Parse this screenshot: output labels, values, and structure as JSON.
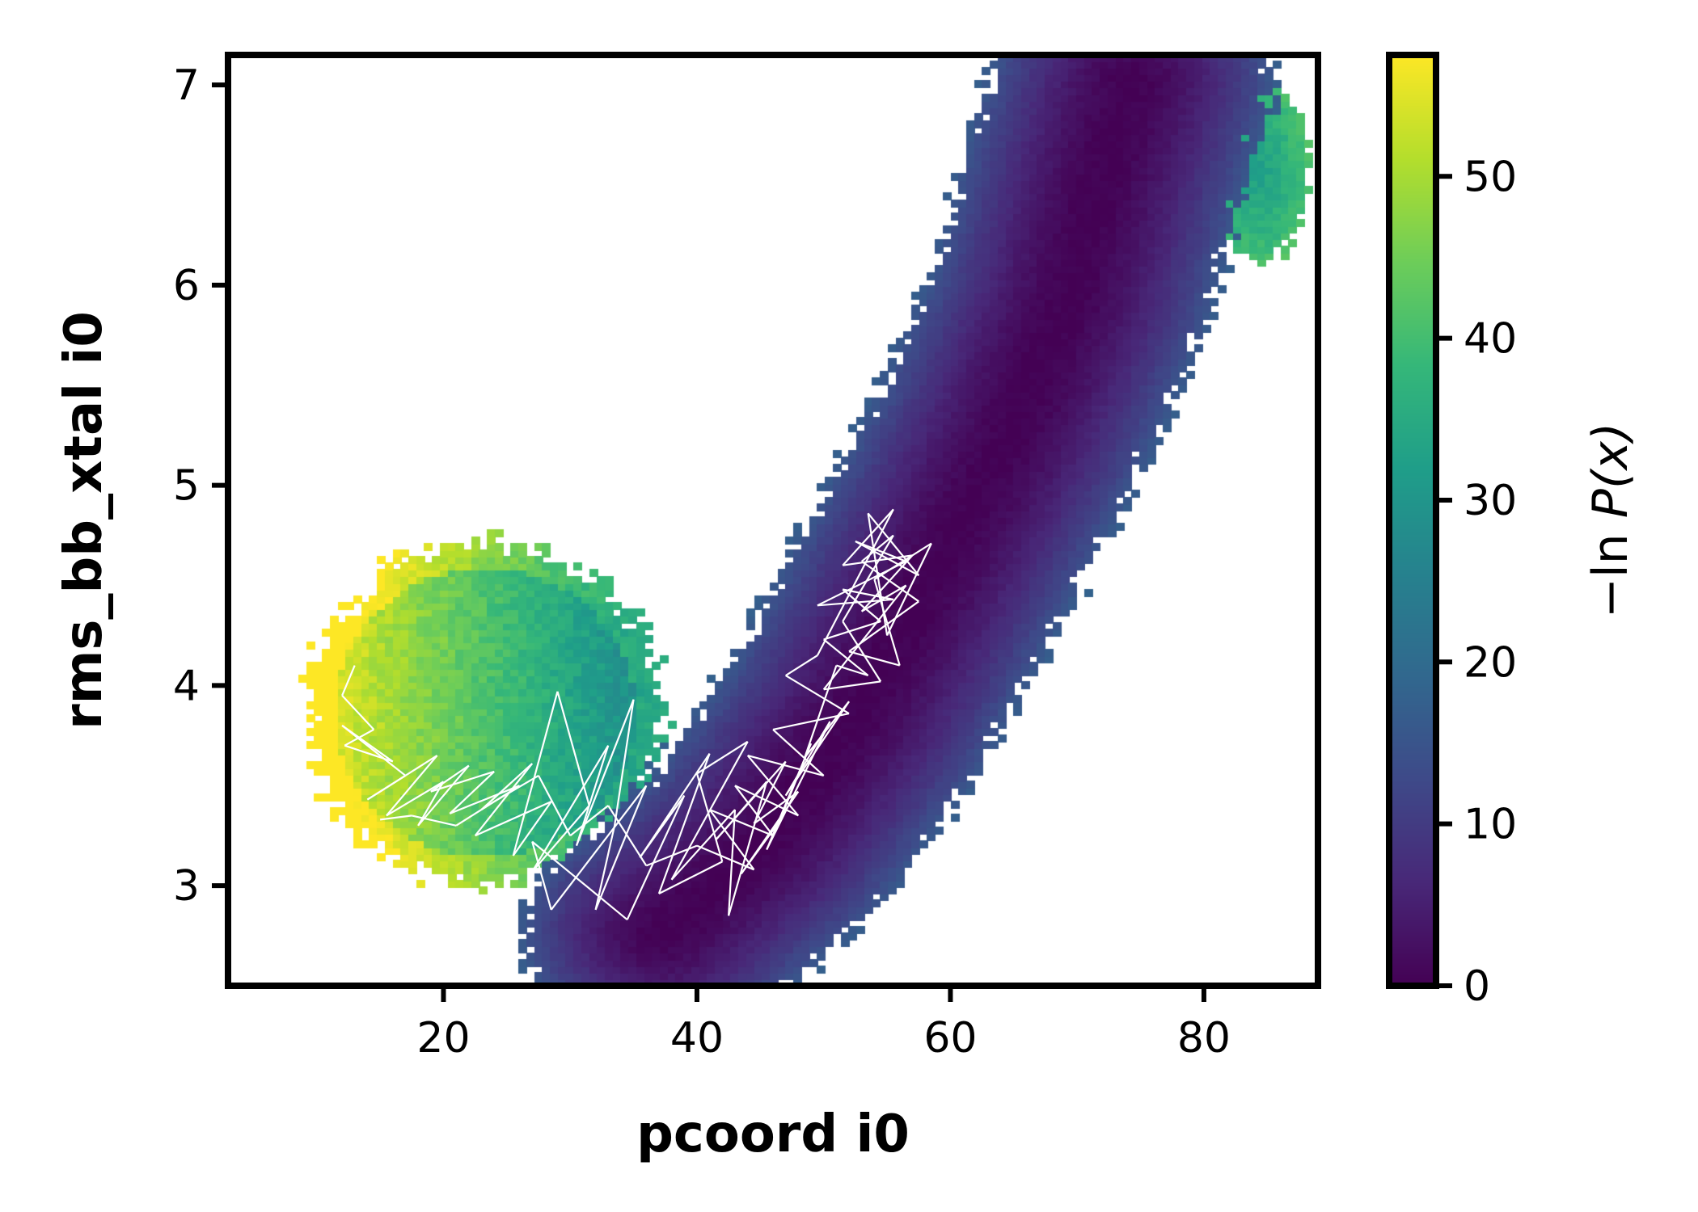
{
  "chart_data": {
    "type": "heatmap",
    "title": "",
    "xlabel": "pcoord i0",
    "ylabel": "rms_bb_xtal i0",
    "xlim": [
      3,
      89
    ],
    "ylim": [
      2.5,
      7.15
    ],
    "x_ticks": [
      20,
      40,
      60,
      80
    ],
    "y_ticks": [
      3,
      4,
      5,
      6,
      7
    ],
    "colorbar": {
      "label_prefix": "−ln ",
      "label_var": "P(x)",
      "colormap": "viridis",
      "range": [
        0,
        57.5
      ],
      "ticks": [
        0,
        10,
        20,
        30,
        40,
        50
      ]
    },
    "grid": false,
    "density_regions": [
      {
        "name": "main-basin",
        "type": "curve-band",
        "value_center": 0,
        "value_edge": 15,
        "path": [
          [
            37,
            2.75
          ],
          [
            45,
            3.2
          ],
          [
            52,
            3.8
          ],
          [
            58,
            4.5
          ],
          [
            64,
            5.2
          ],
          [
            69,
            5.9
          ],
          [
            72,
            6.6
          ],
          [
            74,
            7.0
          ]
        ]
      },
      {
        "name": "side-arm",
        "type": "blob",
        "center": [
          23,
          3.85
        ],
        "radius": [
          14,
          0.85
        ],
        "value_center": 28,
        "value_edge": 56
      },
      {
        "name": "upper-right-tail",
        "type": "blob",
        "center": [
          84,
          6.55
        ],
        "radius": [
          4,
          0.45
        ],
        "value_center": 32,
        "value_edge": 40
      }
    ],
    "trajectory": {
      "color": "#ffffff",
      "points": [
        [
          13,
          4.1
        ],
        [
          12,
          3.95
        ],
        [
          14.5,
          3.78
        ],
        [
          12.2,
          3.7
        ],
        [
          16,
          3.62
        ],
        [
          12,
          3.8
        ],
        [
          17,
          3.55
        ],
        [
          14,
          3.43
        ],
        [
          19.5,
          3.65
        ],
        [
          15.5,
          3.35
        ],
        [
          20,
          3.52
        ],
        [
          18,
          3.3
        ],
        [
          22,
          3.6
        ],
        [
          19,
          3.47
        ],
        [
          24,
          3.57
        ],
        [
          20.5,
          3.36
        ],
        [
          26,
          3.5
        ],
        [
          23,
          3.38
        ],
        [
          27,
          3.61
        ],
        [
          22.5,
          3.25
        ],
        [
          28.5,
          3.42
        ],
        [
          25.5,
          3.15
        ],
        [
          29,
          3.97
        ],
        [
          31.5,
          3.4
        ],
        [
          27,
          3.07
        ],
        [
          33,
          3.7
        ],
        [
          30.5,
          3.2
        ],
        [
          35,
          3.93
        ],
        [
          33.5,
          3.3
        ],
        [
          32,
          2.88
        ],
        [
          36,
          3.5
        ],
        [
          28.5,
          2.88
        ],
        [
          27,
          3.22
        ],
        [
          34.5,
          2.83
        ],
        [
          39,
          3.45
        ],
        [
          35.5,
          3.14
        ],
        [
          41,
          3.66
        ],
        [
          37,
          2.96
        ],
        [
          42,
          3.12
        ],
        [
          40,
          3.56
        ],
        [
          44,
          3.72
        ],
        [
          38,
          3.03
        ],
        [
          43,
          3.38
        ],
        [
          42.5,
          2.85
        ],
        [
          45.5,
          3.52
        ],
        [
          41.5,
          3.23
        ],
        [
          47,
          3.62
        ],
        [
          44.5,
          3.31
        ],
        [
          48,
          3.47
        ],
        [
          43.5,
          3.06
        ],
        [
          46.5,
          3.32
        ],
        [
          49,
          3.71
        ],
        [
          45.5,
          3.18
        ],
        [
          50.5,
          3.82
        ],
        [
          47,
          3.45
        ],
        [
          52,
          3.92
        ],
        [
          48.5,
          3.64
        ],
        [
          51,
          4.1
        ],
        [
          53.5,
          4.05
        ],
        [
          50,
          4.23
        ],
        [
          54.5,
          4.32
        ],
        [
          51.5,
          4.48
        ],
        [
          55.5,
          4.43
        ],
        [
          49.5,
          4.4
        ],
        [
          56.5,
          4.62
        ],
        [
          52.5,
          4.72
        ],
        [
          57.5,
          4.55
        ],
        [
          53.5,
          4.86
        ],
        [
          55,
          4.25
        ],
        [
          58.5,
          4.71
        ],
        [
          54,
          4.53
        ],
        [
          56,
          4.1
        ],
        [
          52,
          4.17
        ],
        [
          57.5,
          4.42
        ],
        [
          53,
          4.62
        ],
        [
          55.5,
          4.75
        ],
        [
          51.5,
          4.32
        ],
        [
          54.5,
          4.02
        ],
        [
          50,
          3.98
        ],
        [
          56.5,
          4.5
        ],
        [
          53,
          4.37
        ],
        [
          57,
          4.65
        ],
        [
          51.5,
          4.6
        ],
        [
          55.5,
          4.88
        ],
        [
          49.5,
          4.15
        ],
        [
          47,
          4.05
        ],
        [
          52,
          3.86
        ],
        [
          46,
          3.78
        ],
        [
          50,
          3.55
        ],
        [
          44,
          3.65
        ],
        [
          48,
          3.35
        ],
        [
          43,
          3.5
        ],
        [
          46,
          3.25
        ],
        [
          41,
          3.38
        ],
        [
          44.5,
          3.08
        ],
        [
          40,
          3.2
        ],
        [
          36,
          3.1
        ],
        [
          33,
          3.4
        ],
        [
          30,
          3.25
        ],
        [
          27.5,
          3.55
        ],
        [
          24,
          3.42
        ],
        [
          21,
          3.3
        ],
        [
          17.5,
          3.35
        ],
        [
          15,
          3.33
        ]
      ]
    }
  }
}
